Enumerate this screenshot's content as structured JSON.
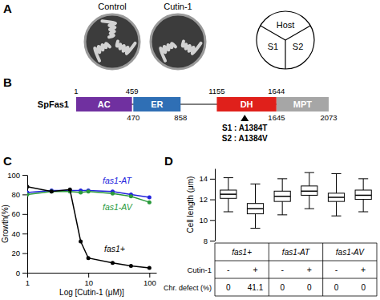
{
  "panel_a": {
    "label": "A",
    "plates": [
      {
        "title": "Control",
        "growth": [
          true,
          true,
          true
        ]
      },
      {
        "title": "Cutin-1",
        "growth": [
          false,
          true,
          true
        ]
      }
    ],
    "key": [
      "Host",
      "S1",
      "S2"
    ]
  },
  "panel_b": {
    "label": "B",
    "protein": "SpFas1",
    "domains": [
      {
        "name": "AC",
        "start": 1,
        "end": 459,
        "color": "#7030a0",
        "label_side": "top"
      },
      {
        "name": "ER",
        "start": 470,
        "end": 858,
        "color": "#2f6fb5",
        "label_side": "bottom"
      },
      {
        "name": "DH",
        "start": 1155,
        "end": 1644,
        "color": "#e0201b",
        "label_side": "top"
      },
      {
        "name": "MPT",
        "start": 1645,
        "end": 2073,
        "color": "#a6a6a6",
        "label_side": "bottom"
      }
    ],
    "mutation_site": 1384,
    "mutations": [
      "S1 : A1384T",
      "S2 : A1384V"
    ]
  },
  "chart_data": [
    {
      "panel": "C",
      "type": "line",
      "log": "x",
      "x_label": "Log [Cutin-1 (μM)]",
      "y_label": "Growth(%)",
      "x": [
        1,
        2.5,
        5,
        7.5,
        10,
        25,
        50,
        100
      ],
      "xlim": [
        1,
        130
      ],
      "xticks": [
        1,
        10,
        100
      ],
      "ylim": [
        0,
        100
      ],
      "yticks": [
        0,
        20,
        40,
        60,
        80,
        100
      ],
      "series": [
        {
          "name": "fas1-AT",
          "color": "#2222dd",
          "marker": "circle",
          "values": [
            82,
            84,
            84,
            84,
            84,
            83,
            80,
            77
          ]
        },
        {
          "name": "fas1-AV",
          "color": "#2a9a3c",
          "marker": "circle",
          "values": [
            80,
            83,
            83,
            82,
            83,
            81,
            78,
            72
          ]
        },
        {
          "name": "fas1+",
          "color": "#000000",
          "marker": "circle",
          "values": [
            88,
            83,
            85,
            32,
            15,
            10,
            7,
            5
          ]
        }
      ]
    },
    {
      "panel": "D",
      "type": "box",
      "y_label": "Cell length (μm)",
      "ylim": [
        8,
        15
      ],
      "yticks": [
        8,
        10,
        12,
        14
      ],
      "groups": [
        "fas1+",
        "fas1-AT",
        "fas1-AV"
      ],
      "treatment_label": "Cutin-1",
      "treatment": [
        "-",
        "+",
        "-",
        "+",
        "-",
        "+"
      ],
      "defect_label": "Chr. defect (%)",
      "defect": [
        0,
        41.1,
        0,
        0,
        0,
        0
      ],
      "whisker_low": [
        10.8,
        9.2,
        10.5,
        11.1,
        10.4,
        10.8
      ],
      "q1": [
        12.1,
        10.6,
        11.8,
        12.4,
        11.8,
        12.0
      ],
      "median": [
        12.5,
        11.1,
        12.3,
        12.8,
        12.2,
        12.4
      ],
      "q3": [
        12.9,
        11.6,
        12.8,
        13.3,
        12.6,
        12.9
      ],
      "whisker_high": [
        14.1,
        13.5,
        14.0,
        14.6,
        14.5,
        14.0
      ]
    }
  ]
}
